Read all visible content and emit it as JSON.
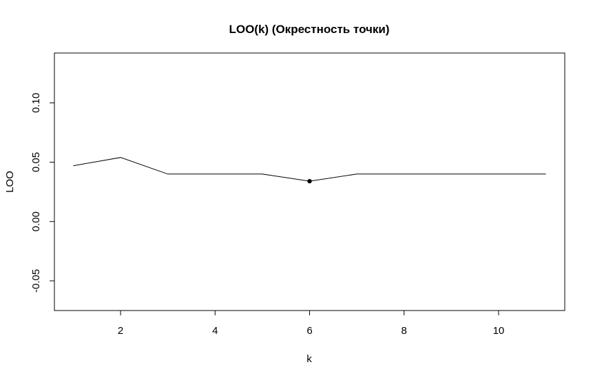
{
  "chart_data": {
    "type": "line",
    "title": "LOO(k) (Окрестность точки)",
    "xlabel": "k",
    "ylabel": "LOO",
    "x": [
      1,
      2,
      3,
      4,
      5,
      6,
      7,
      8,
      9,
      10,
      11
    ],
    "series": [
      {
        "values": [
          0.047,
          0.054,
          0.04,
          0.04,
          0.04,
          0.034,
          0.04,
          0.04,
          0.04,
          0.04,
          0.04
        ],
        "color": "#000000"
      }
    ],
    "highlight_point": {
      "x": 6,
      "y": 0.034
    },
    "xlim": [
      0.6,
      11.4
    ],
    "ylim": [
      -0.075,
      0.142
    ],
    "x_ticks": [
      2,
      4,
      6,
      8,
      10
    ],
    "x_tick_labels": [
      "2",
      "4",
      "6",
      "8",
      "10"
    ],
    "y_ticks": [
      -0.05,
      0.0,
      0.05,
      0.1
    ],
    "y_tick_labels": [
      "-0.05",
      "0.00",
      "0.05",
      "0.10"
    ],
    "grid": false,
    "legend": "none"
  }
}
